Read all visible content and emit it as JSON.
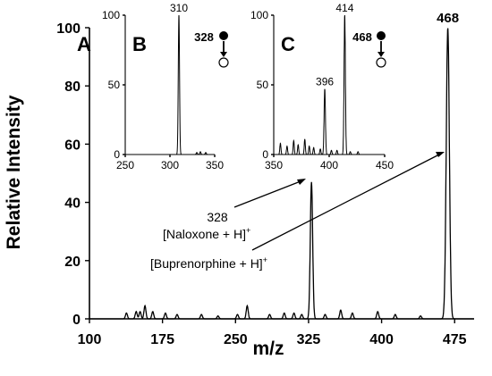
{
  "chart_data": [
    {
      "panel": "A",
      "type": "line",
      "title": "",
      "xlabel": "m/z",
      "ylabel": "Relative Intensity",
      "xlim": [
        100,
        495
      ],
      "ylim": [
        0,
        100
      ],
      "xticks": [
        100,
        175,
        250,
        325,
        400,
        475
      ],
      "yticks": [
        0,
        20,
        40,
        60,
        80,
        100
      ],
      "grid": false,
      "peaks": [
        {
          "mz": 328,
          "intensity": 47,
          "width": 1.2
        },
        {
          "mz": 468,
          "intensity": 100,
          "width": 1.6
        },
        {
          "mz": 157,
          "intensity": 4.5,
          "width": 1
        },
        {
          "mz": 262,
          "intensity": 4.5,
          "width": 1
        },
        {
          "mz": 138,
          "intensity": 2,
          "width": 1
        },
        {
          "mz": 148,
          "intensity": 2.5,
          "width": 1
        },
        {
          "mz": 152,
          "intensity": 2.5,
          "width": 1
        },
        {
          "mz": 165,
          "intensity": 2.5,
          "width": 1
        },
        {
          "mz": 178,
          "intensity": 2,
          "width": 1
        },
        {
          "mz": 190,
          "intensity": 1.5,
          "width": 1
        },
        {
          "mz": 215,
          "intensity": 1.5,
          "width": 1
        },
        {
          "mz": 232,
          "intensity": 1,
          "width": 1
        },
        {
          "mz": 252,
          "intensity": 1.5,
          "width": 1
        },
        {
          "mz": 285,
          "intensity": 1.5,
          "width": 1
        },
        {
          "mz": 300,
          "intensity": 2,
          "width": 1
        },
        {
          "mz": 310,
          "intensity": 2,
          "width": 1
        },
        {
          "mz": 318,
          "intensity": 1.5,
          "width": 1
        },
        {
          "mz": 342,
          "intensity": 1.5,
          "width": 1
        },
        {
          "mz": 358,
          "intensity": 3,
          "width": 1
        },
        {
          "mz": 370,
          "intensity": 2,
          "width": 1
        },
        {
          "mz": 396,
          "intensity": 2.5,
          "width": 1
        },
        {
          "mz": 414,
          "intensity": 1.5,
          "width": 1
        },
        {
          "mz": 440,
          "intensity": 1,
          "width": 1
        }
      ],
      "peak_labels": [
        {
          "mz": 468,
          "text": "468"
        }
      ],
      "annotations": {
        "naloxone_mz": "328",
        "naloxone": "[Naloxone + H]",
        "buprenorphine": "[Buprenorphine + H]",
        "charge": "+"
      }
    },
    {
      "panel": "B",
      "type": "line",
      "title": "",
      "xlim": [
        250,
        350
      ],
      "ylim": [
        0,
        100
      ],
      "xticks": [
        250,
        300,
        350
      ],
      "yticks": [
        0,
        50,
        100
      ],
      "precursor": "328",
      "peaks": [
        {
          "mz": 310,
          "intensity": 100,
          "width": 0.7
        },
        {
          "mz": 330,
          "intensity": 1.5,
          "width": 0.6
        },
        {
          "mz": 334,
          "intensity": 2,
          "width": 0.6
        },
        {
          "mz": 340,
          "intensity": 1.5,
          "width": 0.6
        }
      ],
      "peak_labels": [
        {
          "mz": 310,
          "text": "310"
        }
      ]
    },
    {
      "panel": "C",
      "type": "line",
      "title": "",
      "xlim": [
        350,
        450
      ],
      "ylim": [
        0,
        100
      ],
      "xticks": [
        350,
        400,
        450
      ],
      "yticks": [
        0,
        50,
        100
      ],
      "precursor": "468",
      "peaks": [
        {
          "mz": 414,
          "intensity": 100,
          "width": 0.6
        },
        {
          "mz": 396,
          "intensity": 47,
          "width": 0.6
        },
        {
          "mz": 356,
          "intensity": 8,
          "width": 0.5
        },
        {
          "mz": 362,
          "intensity": 6,
          "width": 0.5
        },
        {
          "mz": 368,
          "intensity": 10,
          "width": 0.5
        },
        {
          "mz": 372,
          "intensity": 7,
          "width": 0.5
        },
        {
          "mz": 378,
          "intensity": 11,
          "width": 0.5
        },
        {
          "mz": 382,
          "intensity": 6,
          "width": 0.5
        },
        {
          "mz": 386,
          "intensity": 5,
          "width": 0.5
        },
        {
          "mz": 392,
          "intensity": 4,
          "width": 0.5
        },
        {
          "mz": 402,
          "intensity": 3,
          "width": 0.5
        },
        {
          "mz": 407,
          "intensity": 3,
          "width": 0.5
        },
        {
          "mz": 419,
          "intensity": 2,
          "width": 0.5
        },
        {
          "mz": 426,
          "intensity": 2,
          "width": 0.5
        }
      ],
      "peak_labels": [
        {
          "mz": 414,
          "text": "414"
        },
        {
          "mz": 396,
          "text": "396"
        }
      ]
    }
  ],
  "colors": {
    "trace": "#000000",
    "axis": "#000000",
    "background": "#ffffff"
  }
}
